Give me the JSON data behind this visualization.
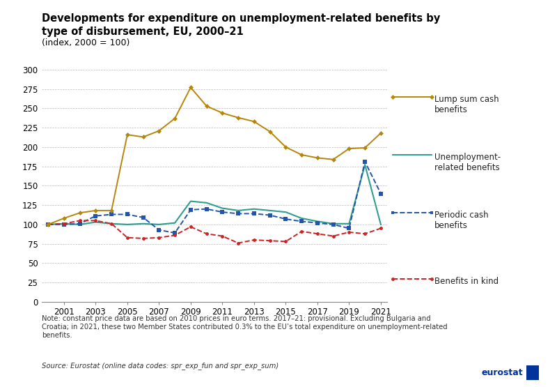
{
  "title_line1": "Developments for expenditure on unemployment-related benefits by",
  "title_line2": "type of disbursement, EU, 2000–21",
  "subtitle": "(index, 2000 = 100)",
  "years": [
    2000,
    2001,
    2002,
    2003,
    2004,
    2005,
    2006,
    2007,
    2008,
    2009,
    2010,
    2011,
    2012,
    2013,
    2014,
    2015,
    2016,
    2017,
    2018,
    2019,
    2020,
    2021
  ],
  "lump_sum": [
    100,
    108,
    115,
    118,
    118,
    216,
    213,
    221,
    237,
    277,
    253,
    244,
    238,
    233,
    220,
    200,
    190,
    186,
    184,
    198,
    199,
    218
  ],
  "unemployment": [
    100,
    101,
    100,
    103,
    101,
    100,
    101,
    100,
    102,
    130,
    128,
    121,
    118,
    120,
    118,
    116,
    108,
    104,
    101,
    101,
    177,
    100
  ],
  "periodic_cash": [
    100,
    100,
    101,
    111,
    113,
    113,
    109,
    93,
    89,
    119,
    120,
    116,
    114,
    114,
    112,
    107,
    104,
    102,
    100,
    95,
    181,
    140
  ],
  "benefits_kind": [
    100,
    101,
    105,
    105,
    101,
    83,
    82,
    83,
    86,
    97,
    88,
    85,
    76,
    80,
    79,
    78,
    91,
    88,
    85,
    90,
    88,
    95
  ],
  "colors": {
    "lump_sum": "#b5860c",
    "unemployment": "#2e9e8e",
    "periodic_cash": "#2255aa",
    "benefits_kind": "#cc2222"
  },
  "ylim": [
    0,
    300
  ],
  "yticks": [
    0,
    25,
    50,
    75,
    100,
    125,
    150,
    175,
    200,
    225,
    250,
    275,
    300
  ],
  "note": "Note: constant price data are based on 2010 prices in euro terms. 2017–21: provisional. Excluding Bulgaria and\nCroatia; in 2021, these two Member States contributed 0.3% to the EU’s total expenditure on unemployment-related\nbenefits.",
  "source": "Source: Eurostat (online data codes: spr_exp_fun and spr_exp_sum)",
  "background_color": "#ffffff"
}
